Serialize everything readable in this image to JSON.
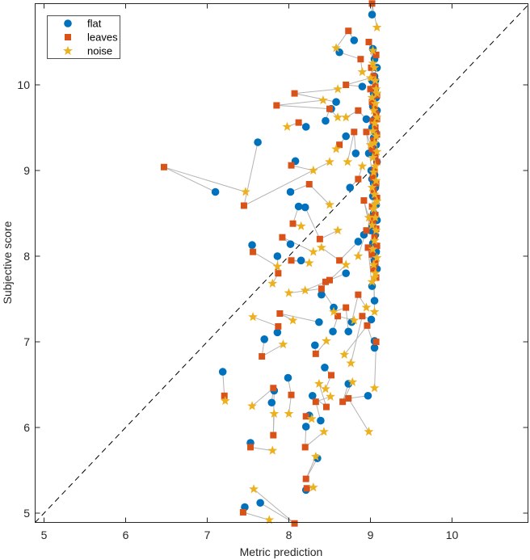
{
  "chart_data": {
    "type": "scatter",
    "xlabel": "Metric prediction",
    "ylabel": "Subjective score",
    "xlim": [
      4.89,
      10.94
    ],
    "ylim": [
      4.88,
      10.95
    ],
    "xticks": [
      {
        "v": 5,
        "label": "5"
      },
      {
        "v": 6,
        "label": "6"
      },
      {
        "v": 7,
        "label": "7"
      },
      {
        "v": 8,
        "label": "8"
      },
      {
        "v": 9,
        "label": "9"
      },
      {
        "v": 10,
        "label": "10"
      }
    ],
    "yticks": [
      {
        "v": 5,
        "label": "5"
      },
      {
        "v": 6,
        "label": "6"
      },
      {
        "v": 7,
        "label": "7"
      },
      {
        "v": 8,
        "label": "8"
      },
      {
        "v": 9,
        "label": "9"
      },
      {
        "v": 10,
        "label": "10"
      }
    ],
    "grid": false,
    "legend_position": "top-left",
    "reference_line": {
      "type": "y=x",
      "style": "dashed",
      "color": "#000000"
    },
    "connector_color": "#b4b4b4",
    "series": [
      {
        "name": "flat",
        "marker": "circle",
        "color": "#0072BD",
        "points": [
          [
            7.1,
            8.75
          ],
          [
            7.62,
            9.33
          ],
          [
            7.19,
            6.65
          ],
          [
            7.53,
            5.82
          ],
          [
            7.46,
            5.07
          ],
          [
            7.65,
            5.12
          ],
          [
            8.21,
            5.27
          ],
          [
            8.35,
            5.64
          ],
          [
            7.55,
            8.13
          ],
          [
            8.02,
            8.75
          ],
          [
            8.08,
            9.11
          ],
          [
            8.52,
            9.72
          ],
          [
            8.58,
            9.8
          ],
          [
            8.21,
            9.51
          ],
          [
            8.02,
            8.14
          ],
          [
            7.86,
            8.0
          ],
          [
            8.12,
            8.58
          ],
          [
            8.2,
            8.57
          ],
          [
            8.15,
            7.95
          ],
          [
            7.79,
            6.29
          ],
          [
            7.82,
            6.43
          ],
          [
            7.99,
            6.58
          ],
          [
            8.25,
            6.14
          ],
          [
            8.21,
            6.01
          ],
          [
            8.39,
            6.08
          ],
          [
            8.29,
            6.37
          ],
          [
            8.44,
            6.7
          ],
          [
            8.73,
            6.51
          ],
          [
            8.97,
            6.37
          ],
          [
            9.05,
            7.01
          ],
          [
            9.05,
            6.93
          ],
          [
            9.01,
            7.26
          ],
          [
            7.7,
            7.03
          ],
          [
            7.86,
            7.11
          ],
          [
            8.32,
            6.96
          ],
          [
            8.37,
            7.23
          ],
          [
            8.54,
            7.12
          ],
          [
            8.73,
            7.12
          ],
          [
            8.77,
            7.23
          ],
          [
            8.4,
            7.55
          ],
          [
            8.55,
            7.4
          ],
          [
            8.7,
            7.8
          ],
          [
            8.85,
            8.17
          ],
          [
            8.92,
            8.25
          ],
          [
            9.02,
            7.65
          ],
          [
            9.05,
            7.48
          ],
          [
            8.45,
            9.58
          ],
          [
            8.7,
            9.4
          ],
          [
            8.82,
            9.2
          ],
          [
            8.75,
            8.8
          ],
          [
            8.8,
            10.52
          ],
          [
            8.62,
            10.38
          ],
          [
            8.9,
            9.98
          ],
          [
            8.95,
            9.6
          ],
          [
            9.02,
            10.82
          ],
          [
            9.03,
            10.42
          ],
          [
            9.05,
            10.1
          ],
          [
            9.05,
            10.3
          ],
          [
            9.08,
            10.2
          ],
          [
            9.02,
            10.05
          ],
          [
            9.06,
            9.95
          ],
          [
            9.04,
            9.9
          ],
          [
            9.07,
            9.85
          ],
          [
            9.03,
            9.75
          ],
          [
            9.08,
            9.7
          ],
          [
            9.05,
            9.6
          ],
          [
            9.02,
            9.5
          ],
          [
            9.06,
            9.45
          ],
          [
            9.04,
            9.38
          ],
          [
            9.07,
            9.3
          ],
          [
            9.03,
            9.2
          ],
          [
            9.08,
            9.1
          ],
          [
            9.01,
            9.0
          ],
          [
            9.05,
            8.95
          ],
          [
            9.02,
            8.9
          ],
          [
            9.06,
            8.8
          ],
          [
            9.03,
            8.7
          ],
          [
            9.07,
            8.6
          ],
          [
            9.04,
            8.5
          ],
          [
            9.08,
            8.42
          ],
          [
            9.02,
            8.35
          ],
          [
            9.06,
            8.25
          ],
          [
            9.03,
            8.15
          ],
          [
            9.07,
            8.05
          ],
          [
            9.05,
            7.95
          ],
          [
            9.08,
            7.85
          ],
          [
            9.04,
            8.85
          ],
          [
            9.06,
            10.05
          ],
          [
            8.98,
            9.2
          ],
          [
            9.0,
            8.3
          ]
        ]
      },
      {
        "name": "leaves",
        "marker": "square",
        "color": "#D95319",
        "points": [
          [
            6.47,
            9.04
          ],
          [
            7.45,
            8.59
          ],
          [
            7.21,
            6.37
          ],
          [
            7.53,
            5.77
          ],
          [
            7.44,
            5.01
          ],
          [
            8.07,
            4.88
          ],
          [
            8.22,
            5.29
          ],
          [
            8.21,
            5.4
          ],
          [
            7.56,
            8.05
          ],
          [
            8.25,
            8.84
          ],
          [
            8.03,
            9.06
          ],
          [
            7.85,
            9.76
          ],
          [
            8.07,
            9.9
          ],
          [
            8.12,
            9.56
          ],
          [
            7.92,
            8.22
          ],
          [
            7.87,
            7.8
          ],
          [
            8.05,
            8.38
          ],
          [
            8.38,
            8.2
          ],
          [
            8.03,
            7.95
          ],
          [
            7.81,
            6.46
          ],
          [
            7.81,
            5.91
          ],
          [
            8.03,
            6.38
          ],
          [
            8.21,
            6.13
          ],
          [
            8.2,
            5.77
          ],
          [
            8.33,
            6.3
          ],
          [
            8.46,
            6.24
          ],
          [
            8.52,
            6.61
          ],
          [
            8.66,
            6.3
          ],
          [
            8.73,
            6.34
          ],
          [
            9.07,
            7.0
          ],
          [
            8.96,
            7.19
          ],
          [
            8.9,
            7.3
          ],
          [
            7.67,
            6.83
          ],
          [
            7.87,
            7.18
          ],
          [
            8.33,
            6.86
          ],
          [
            7.89,
            7.33
          ],
          [
            8.6,
            7.3
          ],
          [
            8.7,
            7.4
          ],
          [
            8.85,
            7.55
          ],
          [
            8.45,
            7.7
          ],
          [
            8.4,
            7.62
          ],
          [
            8.5,
            7.72
          ],
          [
            8.62,
            7.95
          ],
          [
            8.95,
            8.3
          ],
          [
            8.97,
            8.1
          ],
          [
            9.02,
            8.45
          ],
          [
            8.5,
            9.72
          ],
          [
            8.62,
            9.3
          ],
          [
            8.8,
            9.45
          ],
          [
            8.85,
            8.9
          ],
          [
            8.73,
            10.63
          ],
          [
            8.88,
            10.3
          ],
          [
            8.7,
            10.0
          ],
          [
            8.85,
            9.7
          ],
          [
            9.02,
            10.95
          ],
          [
            8.98,
            10.5
          ],
          [
            9.01,
            10.2
          ],
          [
            9.07,
            10.35
          ],
          [
            9.04,
            10.1
          ],
          [
            9.06,
            9.98
          ],
          [
            9.08,
            9.88
          ],
          [
            9.02,
            9.8
          ],
          [
            9.05,
            9.74
          ],
          [
            9.07,
            9.66
          ],
          [
            9.03,
            9.58
          ],
          [
            9.06,
            9.5
          ],
          [
            9.08,
            9.42
          ],
          [
            9.04,
            9.35
          ],
          [
            9.02,
            9.25
          ],
          [
            9.06,
            9.18
          ],
          [
            9.08,
            9.1
          ],
          [
            9.05,
            9.0
          ],
          [
            9.03,
            8.92
          ],
          [
            9.07,
            8.85
          ],
          [
            9.04,
            8.76
          ],
          [
            9.08,
            8.68
          ],
          [
            9.02,
            8.58
          ],
          [
            9.06,
            8.48
          ],
          [
            9.03,
            8.4
          ],
          [
            9.07,
            8.32
          ],
          [
            9.05,
            8.22
          ],
          [
            9.08,
            8.12
          ],
          [
            9.02,
            8.02
          ],
          [
            9.06,
            7.92
          ],
          [
            9.04,
            7.85
          ],
          [
            9.07,
            7.75
          ],
          [
            8.95,
            9.45
          ],
          [
            9.0,
            9.95
          ],
          [
            9.08,
            9.6
          ],
          [
            8.92,
            8.65
          ]
        ]
      },
      {
        "name": "noise",
        "marker": "star",
        "color": "#EDB120",
        "points": [
          [
            7.47,
            8.75
          ],
          [
            8.5,
            9.1
          ],
          [
            7.22,
            6.31
          ],
          [
            7.8,
            5.73
          ],
          [
            7.76,
            4.92
          ],
          [
            7.57,
            5.28
          ],
          [
            8.3,
            5.3
          ],
          [
            8.33,
            5.66
          ],
          [
            7.86,
            7.88
          ],
          [
            8.5,
            8.6
          ],
          [
            8.3,
            9.0
          ],
          [
            8.42,
            9.82
          ],
          [
            8.6,
            9.95
          ],
          [
            7.98,
            9.51
          ],
          [
            8.3,
            8.05
          ],
          [
            7.8,
            7.68
          ],
          [
            8.15,
            8.35
          ],
          [
            8.6,
            8.3
          ],
          [
            8.25,
            7.92
          ],
          [
            7.55,
            6.25
          ],
          [
            7.82,
            6.16
          ],
          [
            8.0,
            6.16
          ],
          [
            8.28,
            6.1
          ],
          [
            8.43,
            5.95
          ],
          [
            8.51,
            6.36
          ],
          [
            8.37,
            6.51
          ],
          [
            8.45,
            6.45
          ],
          [
            8.78,
            6.53
          ],
          [
            8.98,
            5.95
          ],
          [
            9.05,
            6.46
          ],
          [
            8.68,
            6.85
          ],
          [
            8.76,
            6.75
          ],
          [
            7.93,
            6.97
          ],
          [
            7.56,
            7.29
          ],
          [
            8.46,
            7.01
          ],
          [
            8.05,
            7.25
          ],
          [
            8.8,
            7.25
          ],
          [
            8.55,
            7.35
          ],
          [
            8.95,
            7.4
          ],
          [
            8.2,
            7.6
          ],
          [
            8.0,
            7.57
          ],
          [
            8.7,
            7.9
          ],
          [
            8.4,
            8.1
          ],
          [
            8.85,
            8.0
          ],
          [
            9.05,
            7.75
          ],
          [
            9.05,
            7.35
          ],
          [
            8.6,
            9.62
          ],
          [
            8.58,
            9.25
          ],
          [
            8.72,
            9.1
          ],
          [
            8.9,
            9.05
          ],
          [
            8.58,
            10.43
          ],
          [
            8.9,
            10.15
          ],
          [
            9.0,
            10.08
          ],
          [
            8.7,
            9.62
          ],
          [
            9.08,
            10.67
          ],
          [
            9.05,
            10.2
          ],
          [
            9.07,
            9.95
          ],
          [
            9.03,
            10.25
          ],
          [
            9.06,
            10.05
          ],
          [
            9.08,
            9.9
          ],
          [
            9.02,
            9.85
          ],
          [
            9.06,
            9.78
          ],
          [
            9.04,
            9.7
          ],
          [
            9.08,
            9.62
          ],
          [
            9.05,
            9.55
          ],
          [
            9.03,
            9.46
          ],
          [
            9.07,
            9.4
          ],
          [
            9.05,
            9.32
          ],
          [
            9.08,
            9.22
          ],
          [
            9.03,
            9.15
          ],
          [
            9.06,
            9.05
          ],
          [
            9.04,
            8.98
          ],
          [
            9.07,
            8.88
          ],
          [
            9.02,
            8.8
          ],
          [
            9.05,
            8.72
          ],
          [
            9.08,
            8.64
          ],
          [
            9.04,
            8.55
          ],
          [
            9.06,
            8.45
          ],
          [
            9.02,
            8.36
          ],
          [
            9.07,
            8.3
          ],
          [
            9.05,
            8.18
          ],
          [
            9.03,
            8.08
          ],
          [
            9.08,
            7.98
          ],
          [
            9.04,
            7.9
          ],
          [
            9.06,
            7.8
          ],
          [
            9.02,
            7.7
          ],
          [
            9.0,
            9.3
          ],
          [
            9.03,
            10.4
          ],
          [
            9.05,
            8.6
          ],
          [
            8.98,
            8.45
          ]
        ]
      }
    ]
  }
}
